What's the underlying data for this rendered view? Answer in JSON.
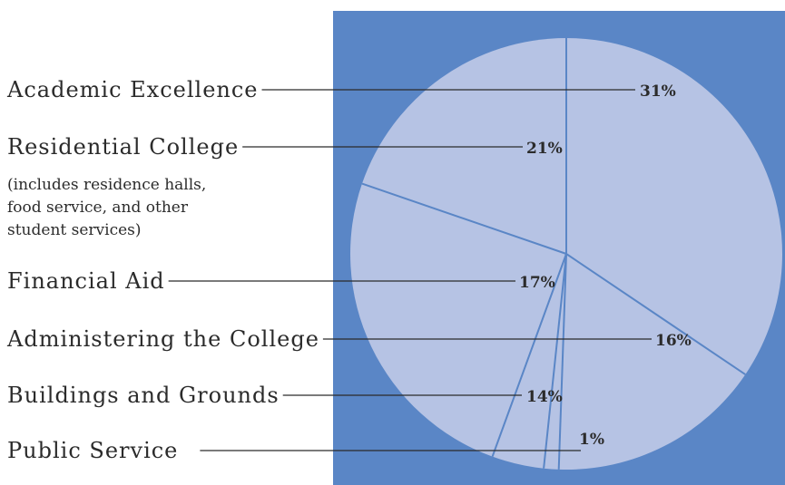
{
  "chart_data": {
    "type": "pie",
    "colors": {
      "panel": "#5a86c6",
      "slice": "#b6c3e4",
      "edge": "#5a86c6",
      "text": "#2b2b2b"
    },
    "slices": [
      {
        "name": "Academic Excellence",
        "value": 31,
        "label": "31%"
      },
      {
        "name": "Residential College",
        "value": 21,
        "label": "21%",
        "note": [
          "(includes residence halls,",
          "food service, and other",
          "student services)"
        ]
      },
      {
        "name": "Financial Aid",
        "value": 17,
        "label": "17%"
      },
      {
        "name": "Administering the College",
        "value": 16,
        "label": "16%"
      },
      {
        "name": "Buildings and Grounds",
        "value": 14,
        "label": "14%"
      },
      {
        "name": "Public Service",
        "value": 1,
        "label": "1%"
      }
    ],
    "slice_boundaries_deg": [
      0,
      124,
      289,
      200,
      186,
      182
    ]
  }
}
